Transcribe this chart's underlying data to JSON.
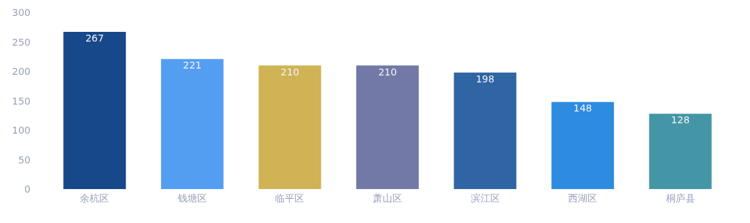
{
  "chart_data": {
    "type": "bar",
    "categories": [
      "余杭区",
      "钱塘区",
      "临平区",
      "萧山区",
      "滨江区",
      "西湖区",
      "桐庐县"
    ],
    "values": [
      267,
      221,
      210,
      210,
      198,
      148,
      128
    ],
    "colors": [
      "#174889",
      "#549ef2",
      "#cfb354",
      "#7279a6",
      "#3065a3",
      "#2e8ce0",
      "#4496a6"
    ],
    "ylim": [
      0,
      300
    ],
    "yticks": [
      0,
      50,
      100,
      150,
      200,
      250,
      300
    ],
    "grid": false,
    "data_labels": true
  }
}
